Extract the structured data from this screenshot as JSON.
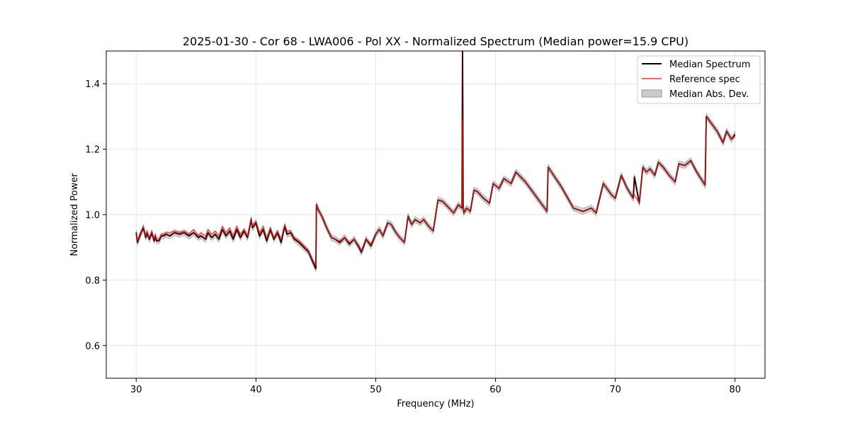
{
  "chart_data": {
    "type": "line",
    "title": "2025-01-30 - Cor 68 - LWA006 - Pol XX - Normalized Spectrum (Median power=15.9 CPU)",
    "xlabel": "Frequency (MHz)",
    "ylabel": "Normalized Power",
    "xlim": [
      27.5,
      82.5
    ],
    "ylim": [
      0.5,
      1.5
    ],
    "x_ticks": [
      30,
      40,
      50,
      60,
      70,
      80
    ],
    "y_ticks": [
      0.6,
      0.8,
      1.0,
      1.2,
      1.4
    ],
    "x_tick_labels": [
      "30",
      "40",
      "50",
      "60",
      "70",
      "80"
    ],
    "y_tick_labels": [
      "0.6",
      "0.8",
      "1.0",
      "1.2",
      "1.4"
    ],
    "grid": true,
    "legend_position": "top-right",
    "mad_halfwidth": 0.009,
    "series": [
      {
        "name": "Median Spectrum",
        "style": "line",
        "color": "#000000",
        "x": [
          30.0,
          30.1,
          30.3,
          30.6,
          30.8,
          30.9,
          31.1,
          31.3,
          31.5,
          31.6,
          31.7,
          31.9,
          32.1,
          32.3,
          32.5,
          32.8,
          33.2,
          33.6,
          34.0,
          34.4,
          34.8,
          35.2,
          35.4,
          35.8,
          36.0,
          36.3,
          36.6,
          36.9,
          37.2,
          37.5,
          37.8,
          38.1,
          38.4,
          38.7,
          39.0,
          39.3,
          39.6,
          39.7,
          40.0,
          40.3,
          40.6,
          40.9,
          41.2,
          41.5,
          41.8,
          42.1,
          42.4,
          42.6,
          42.9,
          43.2,
          43.6,
          44.0,
          44.4,
          44.7,
          45.0,
          45.05,
          45.2,
          45.5,
          45.9,
          46.3,
          46.6,
          47.0,
          47.4,
          47.8,
          48.2,
          48.6,
          48.8,
          49.2,
          49.6,
          50.0,
          50.3,
          50.6,
          51.0,
          51.3,
          51.6,
          52.0,
          52.4,
          52.7,
          53.0,
          53.3,
          53.7,
          54.0,
          54.4,
          54.8,
          55.2,
          55.6,
          56.0,
          56.5,
          56.9,
          57.2,
          57.25,
          57.3,
          57.35,
          57.6,
          57.9,
          58.2,
          58.5,
          59.0,
          59.5,
          59.8,
          60.3,
          60.7,
          61.3,
          61.7,
          62.5,
          63.5,
          64.3,
          64.4,
          65.5,
          66.5,
          67.3,
          68.0,
          68.4,
          69.0,
          69.7,
          70.0,
          70.5,
          71.0,
          71.5,
          71.6,
          72.0,
          72.3,
          72.6,
          72.9,
          73.3,
          73.6,
          74.0,
          74.5,
          75.0,
          75.3,
          75.8,
          76.3,
          76.8,
          77.5,
          77.6,
          78.0,
          78.5,
          79.0,
          79.3,
          79.7,
          80.0
        ],
        "y": [
          0.945,
          0.915,
          0.935,
          0.96,
          0.93,
          0.945,
          0.925,
          0.945,
          0.92,
          0.935,
          0.92,
          0.92,
          0.935,
          0.935,
          0.94,
          0.935,
          0.945,
          0.94,
          0.945,
          0.935,
          0.945,
          0.93,
          0.935,
          0.925,
          0.945,
          0.93,
          0.94,
          0.925,
          0.955,
          0.935,
          0.95,
          0.925,
          0.955,
          0.93,
          0.95,
          0.93,
          0.985,
          0.96,
          0.975,
          0.935,
          0.955,
          0.92,
          0.955,
          0.925,
          0.945,
          0.915,
          0.965,
          0.94,
          0.945,
          0.925,
          0.915,
          0.9,
          0.885,
          0.86,
          0.835,
          1.03,
          1.015,
          0.995,
          0.96,
          0.93,
          0.925,
          0.915,
          0.93,
          0.91,
          0.925,
          0.9,
          0.885,
          0.925,
          0.905,
          0.94,
          0.955,
          0.935,
          0.975,
          0.97,
          0.95,
          0.93,
          0.915,
          0.995,
          0.97,
          0.985,
          0.975,
          0.985,
          0.965,
          0.95,
          1.045,
          1.04,
          1.025,
          1.005,
          1.03,
          1.02,
          1.5,
          1.03,
          1.005,
          1.02,
          1.01,
          1.075,
          1.07,
          1.05,
          1.035,
          1.095,
          1.08,
          1.11,
          1.095,
          1.13,
          1.1,
          1.05,
          1.01,
          1.145,
          1.085,
          1.02,
          1.01,
          1.02,
          1.005,
          1.095,
          1.06,
          1.05,
          1.12,
          1.08,
          1.05,
          1.115,
          1.035,
          1.145,
          1.13,
          1.14,
          1.12,
          1.16,
          1.145,
          1.12,
          1.1,
          1.155,
          1.15,
          1.165,
          1.13,
          1.09,
          1.3,
          1.28,
          1.255,
          1.22,
          1.255,
          1.23,
          1.245
        ]
      },
      {
        "name": "Reference spec",
        "style": "line",
        "color": "#e8393a",
        "x": [
          30.0,
          30.1,
          30.3,
          30.6,
          30.8,
          30.9,
          31.1,
          31.3,
          31.5,
          31.6,
          31.7,
          31.9,
          32.1,
          32.3,
          32.5,
          32.8,
          33.2,
          33.6,
          34.0,
          34.4,
          34.8,
          35.2,
          35.4,
          35.8,
          36.0,
          36.3,
          36.6,
          36.9,
          37.2,
          37.5,
          37.8,
          38.1,
          38.4,
          38.7,
          39.0,
          39.3,
          39.6,
          39.7,
          40.0,
          40.3,
          40.6,
          40.9,
          41.2,
          41.5,
          41.8,
          42.1,
          42.4,
          42.6,
          42.9,
          43.2,
          43.6,
          44.0,
          44.4,
          44.7,
          45.0,
          45.05,
          45.2,
          45.5,
          45.9,
          46.3,
          46.6,
          47.0,
          47.4,
          47.8,
          48.2,
          48.6,
          48.8,
          49.2,
          49.6,
          50.0,
          50.3,
          50.6,
          51.0,
          51.3,
          51.6,
          52.0,
          52.4,
          52.7,
          53.0,
          53.3,
          53.7,
          54.0,
          54.4,
          54.8,
          55.2,
          55.6,
          56.0,
          56.5,
          56.9,
          57.2,
          57.25,
          57.3,
          57.35,
          57.6,
          57.9,
          58.2,
          58.5,
          59.0,
          59.5,
          59.8,
          60.3,
          60.7,
          61.3,
          61.7,
          62.5,
          63.5,
          64.3,
          64.4,
          65.5,
          66.5,
          67.3,
          68.0,
          68.4,
          69.0,
          69.7,
          70.0,
          70.5,
          71.0,
          71.5,
          71.6,
          72.0,
          72.3,
          72.6,
          72.9,
          73.3,
          73.6,
          74.0,
          74.5,
          75.0,
          75.3,
          75.8,
          76.3,
          76.8,
          77.5,
          77.6,
          78.0,
          78.5,
          79.0,
          79.3,
          79.7,
          80.0
        ],
        "y": [
          0.94,
          0.92,
          0.94,
          0.965,
          0.935,
          0.95,
          0.93,
          0.95,
          0.925,
          0.94,
          0.925,
          0.925,
          0.94,
          0.94,
          0.945,
          0.945,
          0.95,
          0.945,
          0.95,
          0.94,
          0.955,
          0.935,
          0.945,
          0.935,
          0.955,
          0.94,
          0.95,
          0.935,
          0.965,
          0.945,
          0.96,
          0.935,
          0.965,
          0.94,
          0.955,
          0.935,
          0.99,
          0.965,
          0.98,
          0.945,
          0.965,
          0.93,
          0.96,
          0.93,
          0.95,
          0.925,
          0.97,
          0.95,
          0.95,
          0.93,
          0.92,
          0.905,
          0.89,
          0.865,
          0.845,
          1.03,
          1.015,
          0.995,
          0.96,
          0.93,
          0.925,
          0.92,
          0.93,
          0.915,
          0.925,
          0.905,
          0.89,
          0.925,
          0.91,
          0.94,
          0.955,
          0.935,
          0.975,
          0.97,
          0.95,
          0.93,
          0.915,
          0.995,
          0.97,
          0.985,
          0.975,
          0.985,
          0.965,
          0.95,
          1.045,
          1.04,
          1.025,
          1.005,
          1.03,
          1.02,
          1.29,
          1.03,
          1.005,
          1.02,
          1.01,
          1.075,
          1.07,
          1.05,
          1.035,
          1.095,
          1.08,
          1.11,
          1.095,
          1.13,
          1.1,
          1.05,
          1.01,
          1.145,
          1.085,
          1.02,
          1.01,
          1.02,
          1.005,
          1.095,
          1.06,
          1.05,
          1.12,
          1.08,
          1.05,
          1.06,
          1.035,
          1.145,
          1.13,
          1.14,
          1.12,
          1.16,
          1.145,
          1.12,
          1.1,
          1.155,
          1.15,
          1.165,
          1.13,
          1.09,
          1.3,
          1.28,
          1.255,
          1.22,
          1.255,
          1.23,
          1.24
        ]
      },
      {
        "name": "Median Abs. Dev.",
        "style": "band",
        "color": "#999999"
      }
    ],
    "overlay_color": "#8b0000"
  }
}
